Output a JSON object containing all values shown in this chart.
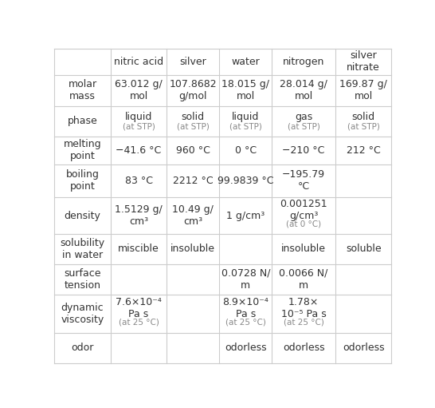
{
  "columns": [
    "",
    "nitric acid",
    "silver",
    "water",
    "nitrogen",
    "silver\nnitrate"
  ],
  "rows": [
    {
      "label": "molar\nmass",
      "values": [
        "63.012 g/\nmol",
        "107.8682\ng/mol",
        "18.015 g/\nmol",
        "28.014 g/\nmol",
        "169.87 g/\nmol"
      ]
    },
    {
      "label": "phase",
      "values": [
        "liquid\n(at STP)",
        "solid\n(at STP)",
        "liquid\n(at STP)",
        "gas\n(at STP)",
        "solid\n(at STP)"
      ]
    },
    {
      "label": "melting\npoint",
      "values": [
        "−41.6 °C",
        "960 °C",
        "0 °C",
        "−210 °C",
        "212 °C"
      ]
    },
    {
      "label": "boiling\npoint",
      "values": [
        "83 °C",
        "2212 °C",
        "99.9839 °C",
        "−195.79\n°C",
        ""
      ]
    },
    {
      "label": "density",
      "values": [
        "1.5129 g/\ncm³",
        "10.49 g/\ncm³",
        "1 g/cm³",
        "0.001251\ng/cm³\n(at 0 °C)",
        ""
      ]
    },
    {
      "label": "solubility\nin water",
      "values": [
        "miscible",
        "insoluble",
        "",
        "insoluble",
        "soluble"
      ]
    },
    {
      "label": "surface\ntension",
      "values": [
        "",
        "",
        "0.0728 N/\nm",
        "0.0066 N/\nm",
        ""
      ]
    },
    {
      "label": "dynamic\nviscosity",
      "values": [
        "7.6×10⁻⁴\nPa s\n(at 25 °C)",
        "",
        "8.9×10⁻⁴\nPa s\n(at 25 °C)",
        "1.78×\n10⁻⁵ Pa s\n(at 25 °C)",
        ""
      ]
    },
    {
      "label": "odor",
      "values": [
        "",
        "",
        "odorless",
        "odorless",
        "odorless"
      ]
    }
  ],
  "bg_color": "#ffffff",
  "line_color": "#cccccc",
  "text_color": "#333333",
  "header_text_color": "#333333",
  "small_text_color": "#888888",
  "font_size": 9,
  "small_font_size": 7.5
}
